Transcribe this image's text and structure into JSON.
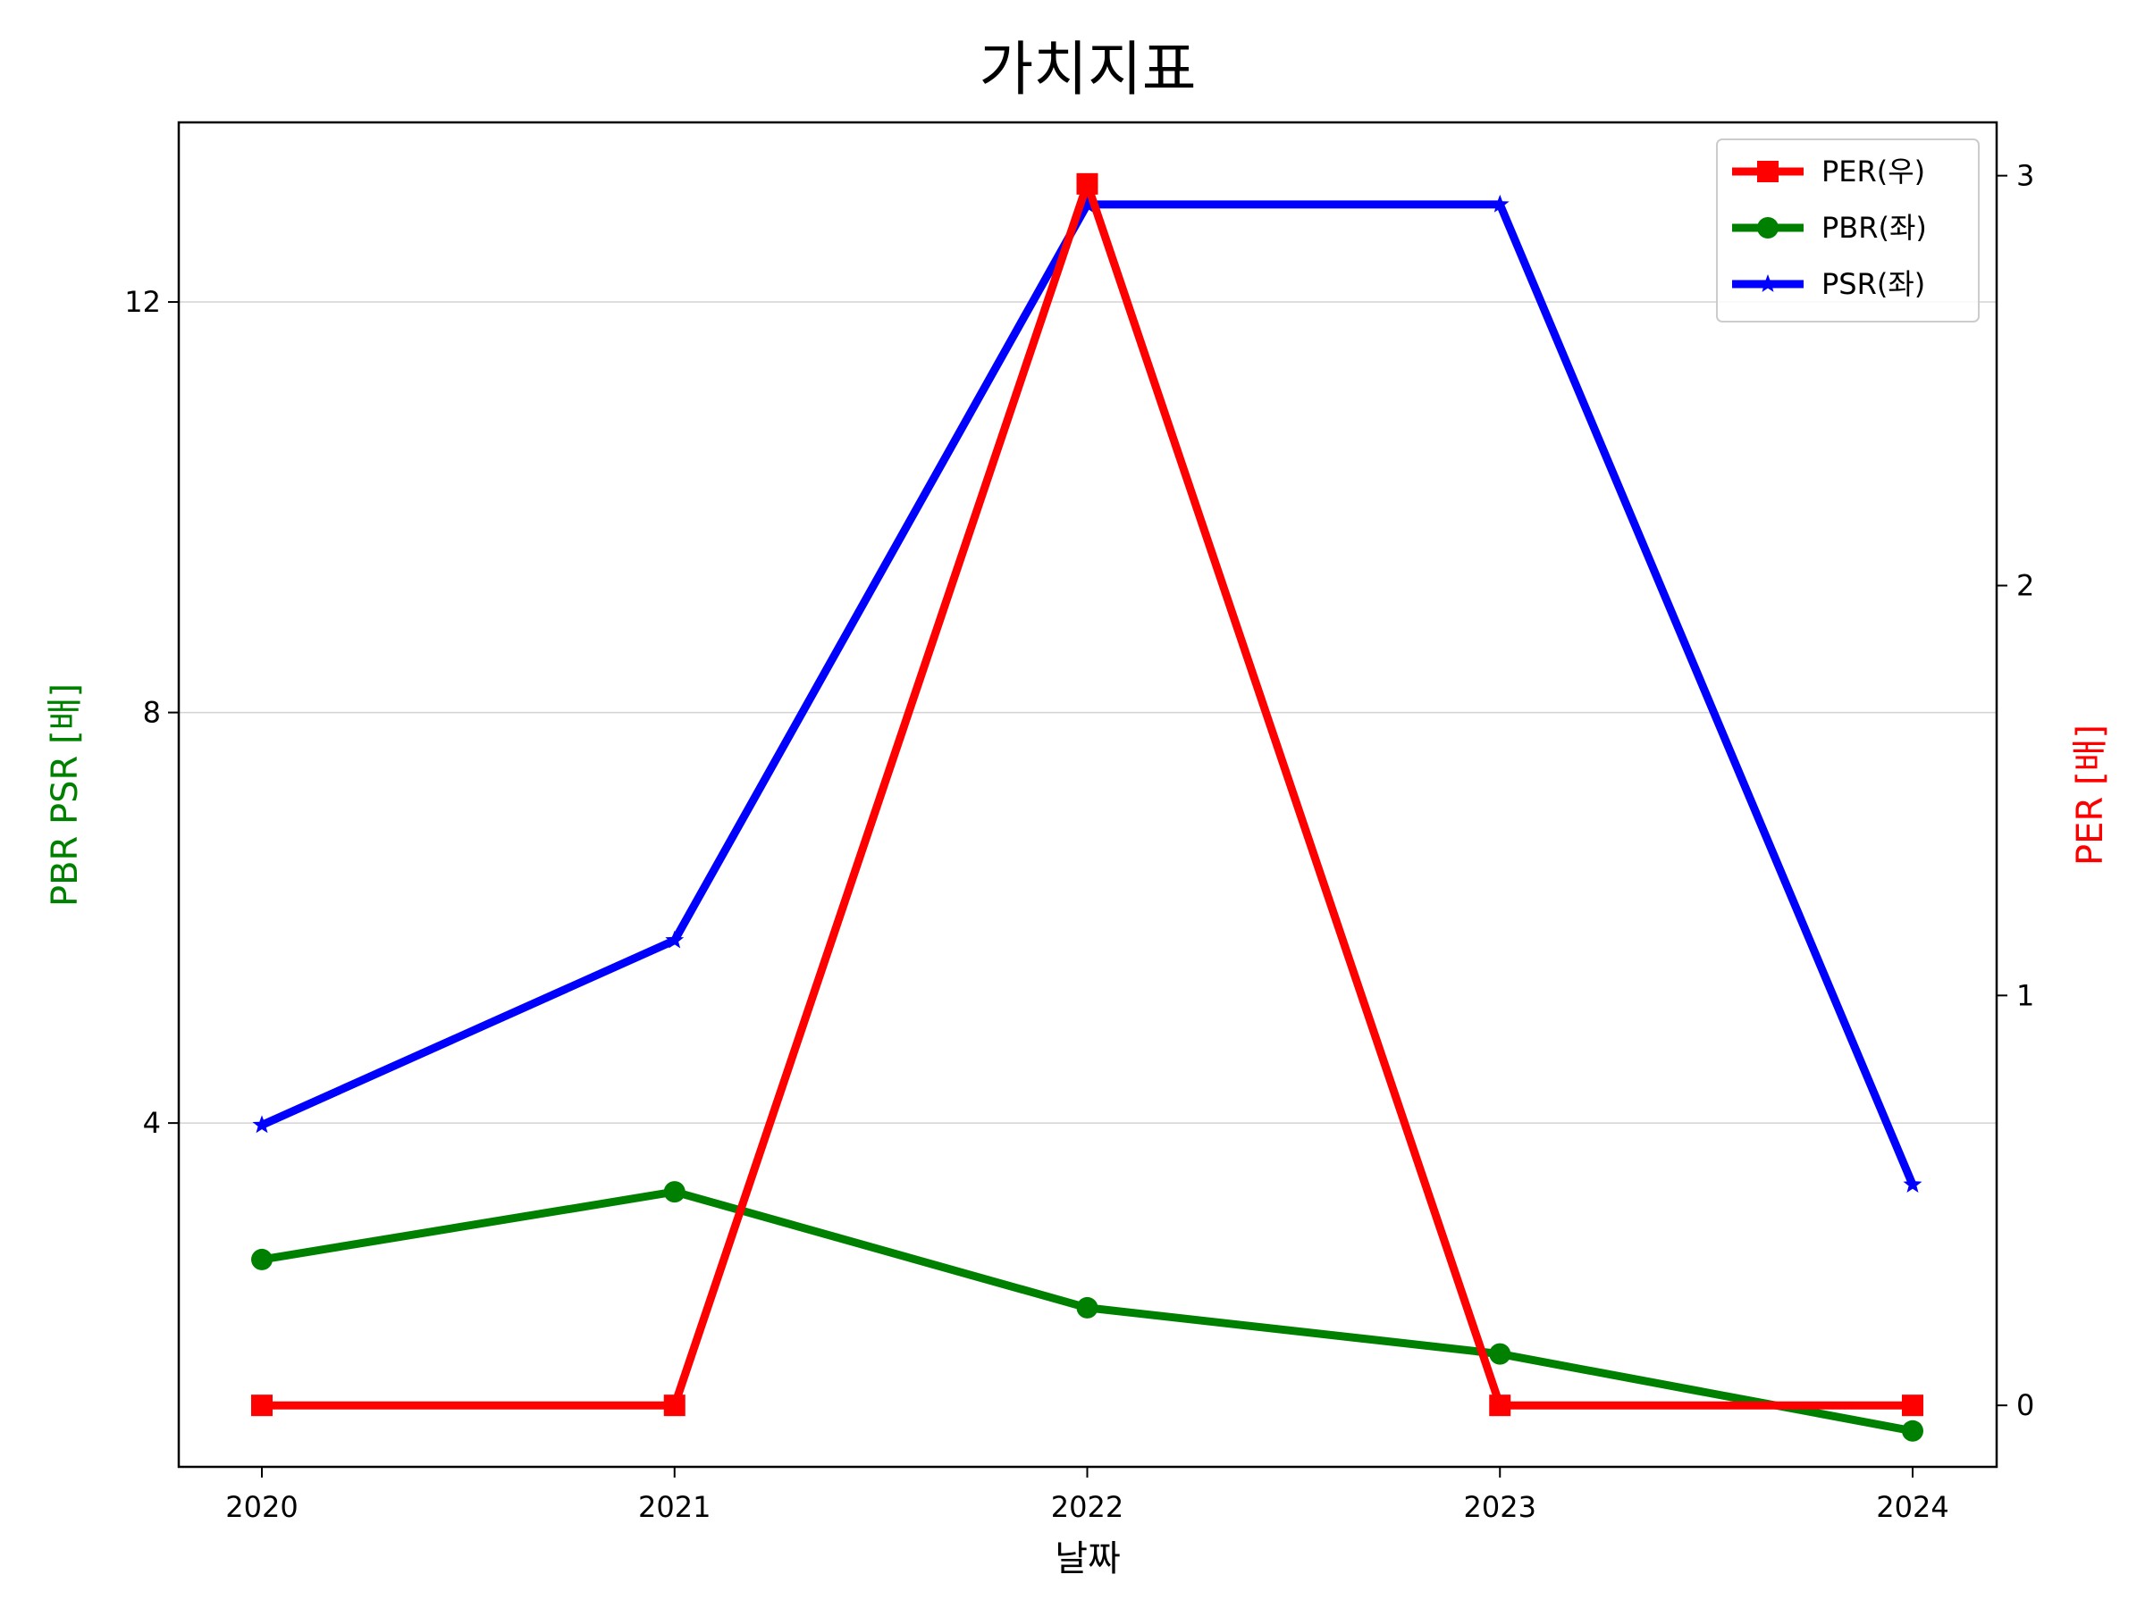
{
  "chart_data": {
    "type": "line",
    "title": "가치지표",
    "xlabel": "날짜",
    "ylabel_left": "PBR PSR [배]",
    "ylabel_right": "PER [배]",
    "ylabel_left_color": "#008000",
    "ylabel_right_color": "#ff0000",
    "categories": [
      "2020",
      "2021",
      "2022",
      "2023",
      "2024"
    ],
    "y_left": {
      "range": [
        0.65,
        13.75
      ],
      "ticks": [
        4,
        8,
        12
      ]
    },
    "y_right": {
      "range": [
        -0.15,
        3.13
      ],
      "ticks": [
        0,
        1,
        2,
        3
      ]
    },
    "grid": "horizontal-left-axis",
    "legend_position": "top-right",
    "series": [
      {
        "name": "PER(우)",
        "axis": "right",
        "color": "#ff0000",
        "marker": "square",
        "values": [
          0,
          0,
          2.98,
          0,
          0
        ]
      },
      {
        "name": "PBR(좌)",
        "axis": "left",
        "color": "#008000",
        "marker": "circle",
        "values": [
          2.67,
          3.33,
          2.2,
          1.75,
          1.0
        ]
      },
      {
        "name": "PSR(좌)",
        "axis": "left",
        "color": "#0000ff",
        "marker": "star",
        "values": [
          3.98,
          5.78,
          12.95,
          12.95,
          3.4
        ]
      }
    ]
  }
}
